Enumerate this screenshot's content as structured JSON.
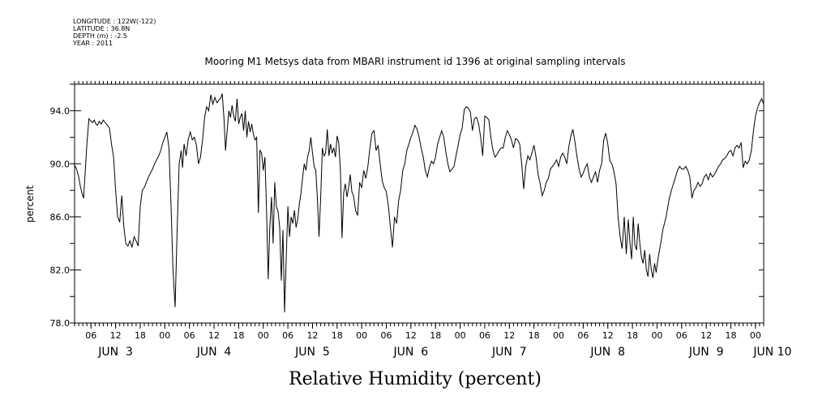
{
  "meta": {
    "longitude": "LONGITUDE : 122W(-122)",
    "latitude": "LATITUDE : 36.8N",
    "depth": "DEPTH (m) : -2.5",
    "year": "YEAR : 2011"
  },
  "chart_data": {
    "type": "line",
    "title": "Mooring M1 Metsys data from MBARI instrument id 1396 at original sampling intervals",
    "xlabel": "Relative Humidity (percent)",
    "ylabel": "percent",
    "ylim": [
      78.0,
      96.0
    ],
    "xlim_hours": [
      2,
      170
    ],
    "y_ticks": [
      {
        "value": 78,
        "label": "78.0"
      },
      {
        "value": 82,
        "label": "82.0"
      },
      {
        "value": 86,
        "label": "86.0"
      },
      {
        "value": 90,
        "label": "90.0"
      },
      {
        "value": 94,
        "label": "94.0"
      }
    ],
    "x_hour_ticks": [
      {
        "hour": 6,
        "label": "06"
      },
      {
        "hour": 12,
        "label": "12"
      },
      {
        "hour": 18,
        "label": "18"
      },
      {
        "hour": 24,
        "label": "00"
      },
      {
        "hour": 30,
        "label": "06"
      },
      {
        "hour": 36,
        "label": "12"
      },
      {
        "hour": 42,
        "label": "18"
      },
      {
        "hour": 48,
        "label": "00"
      },
      {
        "hour": 54,
        "label": "06"
      },
      {
        "hour": 60,
        "label": "12"
      },
      {
        "hour": 66,
        "label": "18"
      },
      {
        "hour": 72,
        "label": "00"
      },
      {
        "hour": 78,
        "label": "06"
      },
      {
        "hour": 84,
        "label": "12"
      },
      {
        "hour": 90,
        "label": "18"
      },
      {
        "hour": 96,
        "label": "00"
      },
      {
        "hour": 102,
        "label": "06"
      },
      {
        "hour": 108,
        "label": "12"
      },
      {
        "hour": 114,
        "label": "18"
      },
      {
        "hour": 120,
        "label": "00"
      },
      {
        "hour": 126,
        "label": "06"
      },
      {
        "hour": 132,
        "label": "12"
      },
      {
        "hour": 138,
        "label": "18"
      },
      {
        "hour": 144,
        "label": "00"
      },
      {
        "hour": 150,
        "label": "06"
      },
      {
        "hour": 156,
        "label": "12"
      },
      {
        "hour": 162,
        "label": "18"
      },
      {
        "hour": 168,
        "label": "00"
      }
    ],
    "x_day_labels": [
      {
        "hour": 12,
        "label": "JUN  3"
      },
      {
        "hour": 36,
        "label": "JUN  4"
      },
      {
        "hour": 60,
        "label": "JUN  5"
      },
      {
        "hour": 84,
        "label": "JUN  6"
      },
      {
        "hour": 108,
        "label": "JUN  7"
      },
      {
        "hour": 132,
        "label": "JUN  8"
      },
      {
        "hour": 156,
        "label": "JUN  9"
      },
      {
        "hour": 168,
        "label": "JUN 10"
      }
    ],
    "series": [
      {
        "x": [
          2.0,
          2.5,
          3.0,
          3.4,
          3.8,
          4.2,
          4.5,
          5.0,
          5.5,
          6.0,
          6.4,
          6.8,
          7.2,
          7.6,
          8.0,
          8.5,
          9.0,
          9.5,
          10.0,
          10.5,
          11.0,
          11.5,
          12.0,
          12.5,
          13.0,
          13.5,
          14.0,
          14.5,
          15.0,
          15.5,
          16.0,
          16.5,
          17.0,
          17.5,
          18.0,
          18.5,
          19.0,
          19.5,
          20.0,
          20.5,
          21.0,
          21.5,
          22.0,
          22.5,
          23.0,
          23.5,
          24.0,
          24.5,
          25.0,
          25.5,
          26.0,
          26.5,
          27.0,
          27.5,
          28.0,
          28.3,
          28.7,
          29.2,
          29.7,
          30.2,
          30.7,
          31.2,
          31.7,
          32.2,
          32.7,
          33.2,
          33.7,
          34.2,
          34.7,
          35.2,
          35.7,
          36.2,
          36.7,
          37.2,
          37.7,
          38.0,
          38.4,
          38.8,
          39.2,
          39.6,
          40.0,
          40.4,
          40.8,
          41.2,
          41.6,
          42.0,
          42.4,
          42.8,
          43.2,
          43.6,
          44.0,
          44.4,
          44.8,
          45.2,
          45.6,
          46.0,
          46.4,
          46.8,
          47.2,
          47.6,
          48.0,
          48.4,
          48.8,
          49.2,
          49.6,
          50.0,
          50.4,
          50.8,
          51.2,
          51.6,
          52.0,
          52.4,
          52.8,
          53.2,
          53.6,
          54.0,
          54.4,
          54.8,
          55.2,
          55.6,
          56.0,
          56.4,
          56.8,
          57.2,
          57.6,
          58.0,
          58.4,
          58.8,
          59.2,
          59.6,
          60.0,
          60.4,
          60.8,
          61.2,
          61.6,
          62.0,
          62.4,
          62.8,
          63.2,
          63.6,
          64.0,
          64.4,
          64.8,
          65.2,
          65.6,
          66.0,
          66.4,
          66.8,
          67.2,
          67.6,
          68.0,
          68.4,
          68.8,
          69.2,
          69.6,
          70.0,
          70.5,
          71.0,
          71.5,
          72.0,
          72.5,
          73.0,
          73.5,
          74.0,
          74.5,
          75.0,
          75.5,
          76.0,
          76.5,
          77.0,
          77.5,
          78.0,
          78.5,
          79.0,
          79.5,
          80.0,
          80.5,
          81.0,
          81.5,
          82.0,
          82.5,
          83.0,
          83.5,
          84.0,
          84.5,
          85.0,
          85.5,
          86.0,
          86.5,
          87.0,
          87.5,
          88.0,
          88.5,
          89.0,
          89.5,
          90.0,
          90.5,
          91.0,
          91.5,
          92.0,
          92.5,
          93.0,
          93.5,
          94.0,
          94.5,
          95.0,
          95.5,
          96.0,
          96.5,
          97.0,
          97.5,
          98.0,
          98.5,
          99.0,
          99.5,
          100.0,
          100.5,
          101.0,
          101.5,
          102.0,
          102.5,
          103.0,
          103.5,
          104.0,
          104.5,
          105.0,
          105.5,
          106.0,
          106.5,
          107.0,
          107.5,
          108.0,
          108.5,
          109.0,
          109.5,
          110.0,
          110.5,
          111.0,
          111.5,
          112.0,
          112.5,
          113.0,
          113.5,
          114.0,
          114.5,
          115.0,
          115.5,
          116.0,
          116.5,
          117.0,
          117.5,
          118.0,
          118.5,
          119.0,
          119.5,
          120.0,
          120.5,
          121.0,
          121.5,
          122.0,
          122.5,
          123.0,
          123.5,
          124.0,
          124.5,
          125.0,
          125.5,
          126.0,
          126.5,
          127.0,
          127.5,
          128.0,
          128.5,
          129.0,
          129.5,
          130.0,
          130.5,
          131.0,
          131.5,
          132.0,
          132.5,
          133.0,
          133.5,
          134.0,
          134.5,
          135.0,
          135.5,
          136.0,
          136.5,
          137.0,
          137.4,
          137.8,
          138.2,
          138.6,
          139.0,
          139.4,
          139.8,
          140.2,
          140.6,
          141.0,
          141.4,
          141.8,
          142.2,
          142.6,
          143.0,
          143.4,
          143.8,
          144.2,
          144.6,
          145.0,
          145.4,
          145.8,
          146.2,
          146.6,
          147.0,
          147.5,
          148.0,
          148.5,
          149.0,
          149.5,
          150.0,
          150.5,
          151.0,
          151.5,
          152.0,
          152.5,
          153.0,
          153.5,
          154.0,
          154.5,
          155.0,
          155.5,
          156.0,
          156.5,
          157.0,
          157.5,
          158.0,
          158.5,
          159.0,
          159.5,
          160.0,
          160.5,
          161.0,
          161.5,
          162.0,
          162.5,
          163.0,
          163.5,
          164.0,
          164.5,
          165.0,
          165.5,
          166.0,
          166.5,
          167.0,
          167.5,
          168.0,
          168.5,
          169.0,
          169.5,
          170.0
        ],
        "y": [
          89.9,
          89.6,
          89.0,
          88.3,
          87.8,
          87.4,
          88.9,
          91.5,
          93.4,
          93.2,
          93.1,
          93.3,
          93.0,
          92.9,
          93.2,
          93.0,
          93.3,
          93.1,
          92.9,
          92.7,
          91.5,
          90.5,
          88.0,
          86.0,
          85.6,
          87.6,
          85.3,
          84.0,
          83.8,
          84.2,
          83.7,
          84.5,
          84.2,
          83.8,
          86.8,
          88.0,
          88.2,
          88.6,
          89.0,
          89.3,
          89.6,
          90.0,
          90.3,
          90.6,
          91.0,
          91.6,
          92.0,
          92.4,
          91.2,
          87.0,
          82.0,
          79.2,
          85.0,
          90.0,
          91.0,
          89.7,
          91.5,
          90.6,
          91.8,
          92.4,
          91.8,
          92.0,
          91.4,
          90.0,
          90.5,
          91.8,
          93.5,
          94.3,
          94.0,
          95.2,
          94.5,
          95.0,
          94.6,
          94.8,
          95.0,
          95.3,
          93.5,
          91.0,
          92.5,
          94.0,
          93.5,
          94.4,
          93.6,
          93.2,
          94.9,
          93.0,
          93.5,
          93.8,
          92.5,
          94.0,
          92.0,
          93.2,
          92.4,
          93.0,
          92.2,
          91.8,
          92.0,
          86.3,
          91.0,
          90.8,
          89.5,
          90.5,
          86.5,
          81.3,
          85.2,
          87.5,
          84.0,
          88.6,
          86.8,
          86.4,
          85.2,
          81.2,
          85.0,
          78.8,
          83.0,
          86.8,
          84.5,
          86.0,
          85.5,
          86.5,
          85.2,
          85.8,
          87.0,
          87.8,
          89.0,
          90.0,
          89.5,
          90.5,
          91.0,
          92.0,
          90.8,
          89.8,
          89.5,
          87.4,
          84.5,
          87.5,
          91.2,
          90.6,
          90.8,
          92.6,
          90.6,
          91.5,
          90.8,
          91.2,
          90.5,
          92.1,
          91.6,
          89.5,
          84.4,
          87.8,
          88.5,
          87.5,
          88.2,
          89.2,
          87.9,
          87.6,
          86.5,
          86.1,
          88.6,
          88.2,
          89.5,
          88.9,
          89.8,
          91.2,
          92.3,
          92.5,
          91.0,
          91.4,
          90.0,
          88.7,
          88.2,
          87.9,
          86.8,
          85.2,
          83.7,
          86.0,
          85.5,
          87.2,
          88.0,
          89.5,
          90.0,
          91.0,
          91.5,
          92.0,
          92.4,
          92.9,
          92.6,
          92.0,
          91.2,
          90.5,
          89.5,
          89.0,
          89.7,
          90.2,
          90.0,
          90.5,
          91.5,
          92.0,
          92.5,
          92.0,
          90.9,
          90.0,
          89.4,
          89.6,
          89.8,
          90.6,
          91.4,
          92.2,
          92.7,
          94.1,
          94.3,
          94.2,
          93.9,
          92.5,
          93.4,
          93.5,
          93.0,
          92.0,
          90.6,
          93.6,
          93.5,
          93.3,
          92.0,
          91.0,
          90.5,
          90.7,
          91.0,
          91.2,
          91.2,
          92.0,
          92.5,
          92.2,
          91.8,
          91.2,
          91.9,
          91.8,
          91.5,
          90.0,
          88.1,
          89.8,
          90.6,
          90.3,
          90.8,
          91.4,
          90.5,
          89.2,
          88.5,
          87.6,
          88.0,
          88.6,
          88.9,
          89.6,
          89.8,
          90.0,
          90.3,
          89.8,
          90.5,
          90.8,
          90.5,
          90.0,
          91.3,
          92.1,
          92.6,
          91.6,
          90.5,
          89.6,
          89.0,
          89.3,
          89.7,
          90.0,
          89.0,
          88.6,
          89.0,
          89.4,
          88.6,
          89.5,
          90.0,
          91.8,
          92.3,
          91.5,
          90.2,
          90.0,
          89.4,
          88.5,
          86.0,
          84.5,
          83.6,
          86.0,
          83.2,
          85.8,
          84.0,
          82.8,
          86.0,
          83.9,
          83.5,
          85.5,
          84.0,
          83.0,
          82.5,
          83.5,
          82.0,
          81.5,
          83.2,
          82.0,
          81.4,
          82.5,
          81.8,
          82.8,
          83.5,
          84.2,
          85.0,
          85.5,
          86.0,
          86.7,
          87.4,
          88.0,
          88.5,
          89.0,
          89.5,
          89.8,
          89.6,
          89.6,
          89.8,
          89.5,
          89.0,
          87.4,
          88.0,
          88.2,
          88.6,
          88.3,
          88.5,
          89.0,
          89.2,
          88.8,
          89.3,
          89.0,
          89.2,
          89.5,
          89.8,
          90.0,
          90.3,
          90.4,
          90.6,
          90.9,
          91.0,
          90.6,
          91.2,
          91.4,
          91.2,
          91.6,
          89.7,
          90.2,
          90.0,
          90.3,
          91.0,
          92.5,
          93.6,
          94.2,
          94.6,
          94.9,
          94.5
        ]
      }
    ]
  }
}
